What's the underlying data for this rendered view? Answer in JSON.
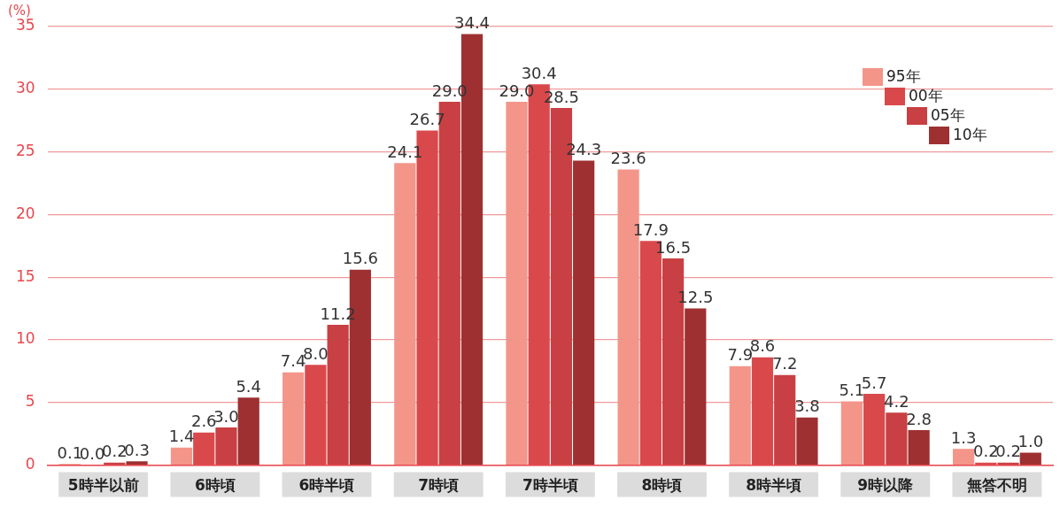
{
  "chart_data": {
    "type": "bar",
    "ylabel": "(%)",
    "categories": [
      "5時半以前",
      "6時頃",
      "6時半頃",
      "7時頃",
      "7時半頃",
      "8時頃",
      "8時半頃",
      "9時以降",
      "無答不明"
    ],
    "series": [
      {
        "name": "95年",
        "color": "#f4958a",
        "values": [
          0.1,
          1.4,
          7.4,
          24.1,
          29.0,
          23.6,
          7.9,
          5.1,
          1.3
        ],
        "value_labels": [
          "0.1",
          "1.4",
          "7.4",
          "24.1",
          "29.0",
          "23.6",
          "7.9",
          "5.1",
          "1.3"
        ]
      },
      {
        "name": "00年",
        "color": "#d9494c",
        "values": [
          0,
          2.6,
          8.0,
          26.7,
          30.4,
          17.9,
          8.6,
          5.7,
          0.2
        ],
        "value_labels": [
          "0.0",
          "2.6",
          "8.0",
          "26.7",
          "30.4",
          "17.9",
          "8.6",
          "5.7",
          "0.2"
        ]
      },
      {
        "name": "05年",
        "color": "#c84043",
        "values": [
          0.2,
          3.0,
          11.2,
          29.0,
          28.5,
          16.5,
          7.2,
          4.2,
          0.2
        ],
        "value_labels": [
          "0.2",
          "3.0",
          "11.2",
          "29.0",
          "28.5",
          "16.5",
          "7.2",
          "4.2",
          "0.2"
        ]
      },
      {
        "name": "10年",
        "color": "#9e3032",
        "values": [
          0.3,
          5.4,
          15.6,
          34.4,
          24.3,
          12.5,
          3.8,
          2.8,
          1.0
        ],
        "value_labels": [
          "0.3",
          "5.4",
          "15.6",
          "34.4",
          "24.3",
          "12.5",
          "3.8",
          "2.8",
          "1.0"
        ]
      }
    ],
    "ylim": [
      0,
      35
    ],
    "yticks": [
      0,
      5,
      10,
      15,
      20,
      25,
      30,
      35
    ],
    "grid": "y",
    "legend": "top right"
  }
}
